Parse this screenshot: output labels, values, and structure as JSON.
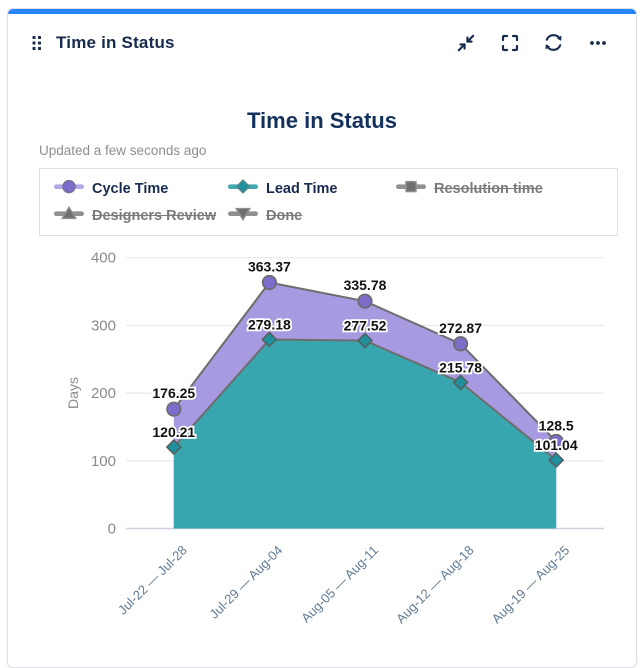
{
  "gadget": {
    "title": "Time in Status",
    "icons": [
      "drag-handle-icon",
      "collapse-icon",
      "fullscreen-icon",
      "refresh-icon",
      "more-icon"
    ]
  },
  "chart": {
    "title": "Time in Status",
    "updated": "Updated a few seconds ago"
  },
  "colors": {
    "accent_blue": "#2684ff",
    "navy_text": "#172b4d",
    "grid": "#e9e9ee",
    "baseline": "#cfcfdd",
    "series_line": "#6d6d6d",
    "cycle_area": "#a79ae0",
    "cycle_marker": "#7e6cca",
    "cycle_legend_line": "#b3a7e6",
    "lead_area": "#38a6af",
    "lead_marker": "#1e8f9b",
    "lead_legend_line": "#41aab2",
    "disabled_gray": "#6e6e6e",
    "disabled_line": "#909090",
    "xlabel_color": "#5f7a94",
    "ytick_color": "#8b8b8b"
  },
  "chart_data": {
    "type": "area",
    "categories": [
      "Jul-22 — Jul-28",
      "Jul-29 — Aug-04",
      "Aug-05 — Aug-11",
      "Aug-12 — Aug-18",
      "Aug-19 — Aug-25"
    ],
    "series": [
      {
        "name": "Cycle Time",
        "values": [
          176.25,
          363.37,
          335.78,
          272.87,
          128.5
        ],
        "marker": "circle",
        "enabled": true,
        "area_color": "#a79ae0",
        "marker_color": "#7e6cca",
        "legend_line": "#b3a7e6",
        "marker_stroke": "#75719a"
      },
      {
        "name": "Lead Time",
        "values": [
          120.21,
          279.18,
          277.52,
          215.78,
          101.04
        ],
        "marker": "diamond",
        "enabled": true,
        "area_color": "#38a6af",
        "marker_color": "#1e8f9b",
        "legend_line": "#41aab2",
        "marker_stroke": "#57868d"
      },
      {
        "name": "Resolution time",
        "values": [],
        "marker": "square",
        "enabled": false
      },
      {
        "name": "Designers Review",
        "values": [],
        "marker": "triangle-up",
        "enabled": false
      },
      {
        "name": "Done",
        "values": [],
        "marker": "triangle-down",
        "enabled": false
      }
    ],
    "title": "Time in Status",
    "xlabel": "",
    "ylabel": "Days",
    "yticks": [
      0,
      100,
      200,
      300,
      400
    ],
    "ylim": [
      0,
      400
    ],
    "grid": true,
    "legend_position": "top"
  }
}
